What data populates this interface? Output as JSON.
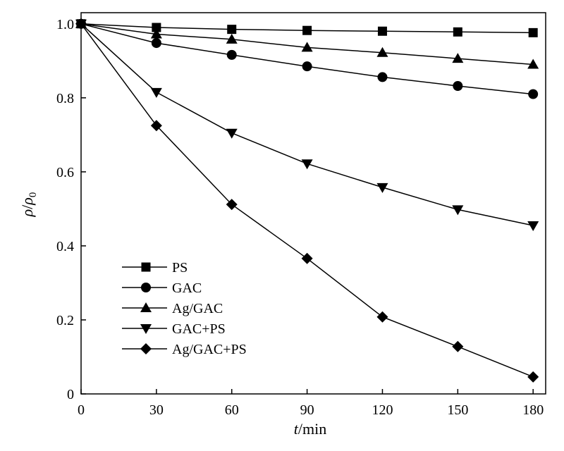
{
  "chart_data": {
    "type": "line",
    "xlabel": {
      "italic": "t",
      "rest": "/min"
    },
    "ylabel": {
      "rho": "ρ",
      "slash": "/",
      "rho0": "ρ",
      "sub": "0"
    },
    "x": [
      0,
      30,
      60,
      90,
      120,
      150,
      180
    ],
    "xlim": [
      0,
      185
    ],
    "ylim": [
      0,
      1.03
    ],
    "xticks": [
      0,
      30,
      60,
      90,
      120,
      150,
      180
    ],
    "xtick_labels": [
      "0",
      "30",
      "60",
      "90",
      "120",
      "150",
      "180"
    ],
    "yticks": [
      0,
      0.2,
      0.4,
      0.6,
      0.8,
      1.0
    ],
    "ytick_labels": [
      "0",
      "0.2",
      "0.4",
      "0.6",
      "0.8",
      "1.0"
    ],
    "grid": false,
    "legend_position": "lower-left",
    "series": [
      {
        "name": "PS",
        "marker": "square",
        "values": [
          1.0,
          0.99,
          0.985,
          0.982,
          0.98,
          0.978,
          0.976
        ]
      },
      {
        "name": "GAC",
        "marker": "circle",
        "values": [
          1.0,
          0.948,
          0.916,
          0.885,
          0.856,
          0.832,
          0.81
        ]
      },
      {
        "name": "Ag/GAC",
        "marker": "triangle-up",
        "values": [
          1.0,
          0.972,
          0.958,
          0.936,
          0.922,
          0.906,
          0.89
        ]
      },
      {
        "name": "GAC+PS",
        "marker": "triangle-down",
        "values": [
          1.0,
          0.815,
          0.705,
          0.622,
          0.558,
          0.498,
          0.455
        ]
      },
      {
        "name": "Ag/GAC+PS",
        "marker": "diamond",
        "values": [
          1.0,
          0.725,
          0.512,
          0.366,
          0.208,
          0.128,
          0.046
        ]
      }
    ]
  }
}
